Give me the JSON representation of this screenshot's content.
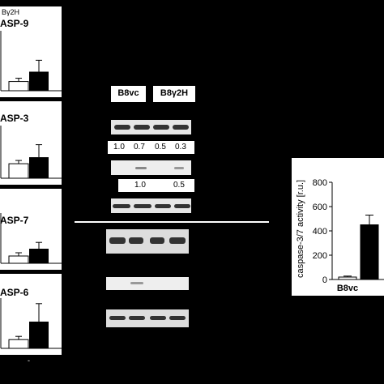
{
  "left_panels": {
    "legend_label": "Bγ2H",
    "panels": [
      {
        "label": "ASP-9",
        "white_bar": 0.17,
        "black_bar": 0.35,
        "black_err": 0.21
      },
      {
        "label": "ASP-3",
        "white_bar": 0.29,
        "black_bar": 0.42,
        "black_err": 0.25
      },
      {
        "label": "ASP-7",
        "white_bar": 0.15,
        "black_bar": 0.3,
        "black_err": 0.13
      },
      {
        "label": "ASP-6",
        "white_bar": 0.18,
        "black_bar": 0.55,
        "black_err": 0.37
      }
    ],
    "x_label_partial": "-"
  },
  "blot": {
    "lane_labels": [
      "B8vc",
      "B8γ2H"
    ],
    "quant_row1": [
      "1.0",
      "0.7",
      "0.5",
      "0.3"
    ],
    "quant_row2": [
      "1.0",
      "0.5"
    ]
  },
  "chart_data": {
    "type": "bar",
    "categories": [
      "B8vc",
      ""
    ],
    "values": [
      20,
      450
    ],
    "errors": [
      8,
      80
    ],
    "ylabel": "caspase-3/7 activity [r.u.]",
    "ylim": [
      0,
      800
    ],
    "yticks": [
      0,
      200,
      400,
      600,
      800
    ],
    "colors": [
      "#ffffff",
      "#000000"
    ]
  }
}
